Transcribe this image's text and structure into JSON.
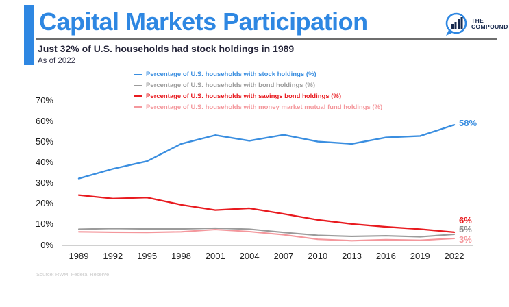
{
  "header": {
    "title": "Capital Markets Participation",
    "subtitle": "Just 32% of U.S. households had stock holdings in 1989",
    "as_of": "As of 2022",
    "logo": {
      "line1": "THE",
      "line2": "COMPOUND"
    }
  },
  "source": "Source: RWM, Federal Reserve",
  "colors": {
    "accent_blue": "#2e87e2",
    "stock_blue": "#3a8ee0",
    "bond_gray": "#9b9b9b",
    "savings_red": "#e81a1f",
    "money_market_pink": "#f4979c",
    "axis_line": "#b5b5b5",
    "logo_navy": "#17294d"
  },
  "chart_data": {
    "type": "line",
    "x": [
      1989,
      1992,
      1995,
      1998,
      2001,
      2004,
      2007,
      2010,
      2013,
      2016,
      2019,
      2022
    ],
    "series": [
      {
        "name": "Percentage of U.S. households with stock holdings (%)",
        "color": "#3a8ee0",
        "bold": true,
        "end_label": "58%",
        "values": [
          32,
          36.7,
          40.4,
          48.8,
          53,
          50.3,
          53.2,
          49.9,
          48.8,
          51.9,
          52.6,
          58
        ]
      },
      {
        "name": "Percentage of U.S. households with bond holdings (%)",
        "color": "#9b9b9b",
        "bold": false,
        "end_label": "5%",
        "values": [
          7.5,
          7.8,
          7.6,
          7.6,
          8,
          7.5,
          5.9,
          4.5,
          4,
          4.3,
          3.8,
          5
        ]
      },
      {
        "name": "Percentage of U.S. households with savings bond holdings (%)",
        "color": "#e81a1f",
        "bold": true,
        "end_label": "6%",
        "values": [
          24,
          22.3,
          22.8,
          19.3,
          16.7,
          17.6,
          14.9,
          12,
          10,
          8.6,
          7.5,
          6
        ]
      },
      {
        "name": "Percentage of U.S. households with money market mutual fund holdings (%)",
        "color": "#f4979c",
        "bold": false,
        "end_label": "3%",
        "values": [
          6.2,
          6,
          5.9,
          6.2,
          7.3,
          6.3,
          4.8,
          2.6,
          1.9,
          2.4,
          2.1,
          3
        ]
      }
    ],
    "yticks": [
      "70%",
      "60%",
      "50%",
      "40%",
      "30%",
      "20%",
      "10%",
      "0%"
    ],
    "ylim": [
      0,
      70
    ],
    "grid": false,
    "legend_position": "top-center",
    "title": "Capital Markets Participation",
    "xlabel": "",
    "ylabel": ""
  }
}
